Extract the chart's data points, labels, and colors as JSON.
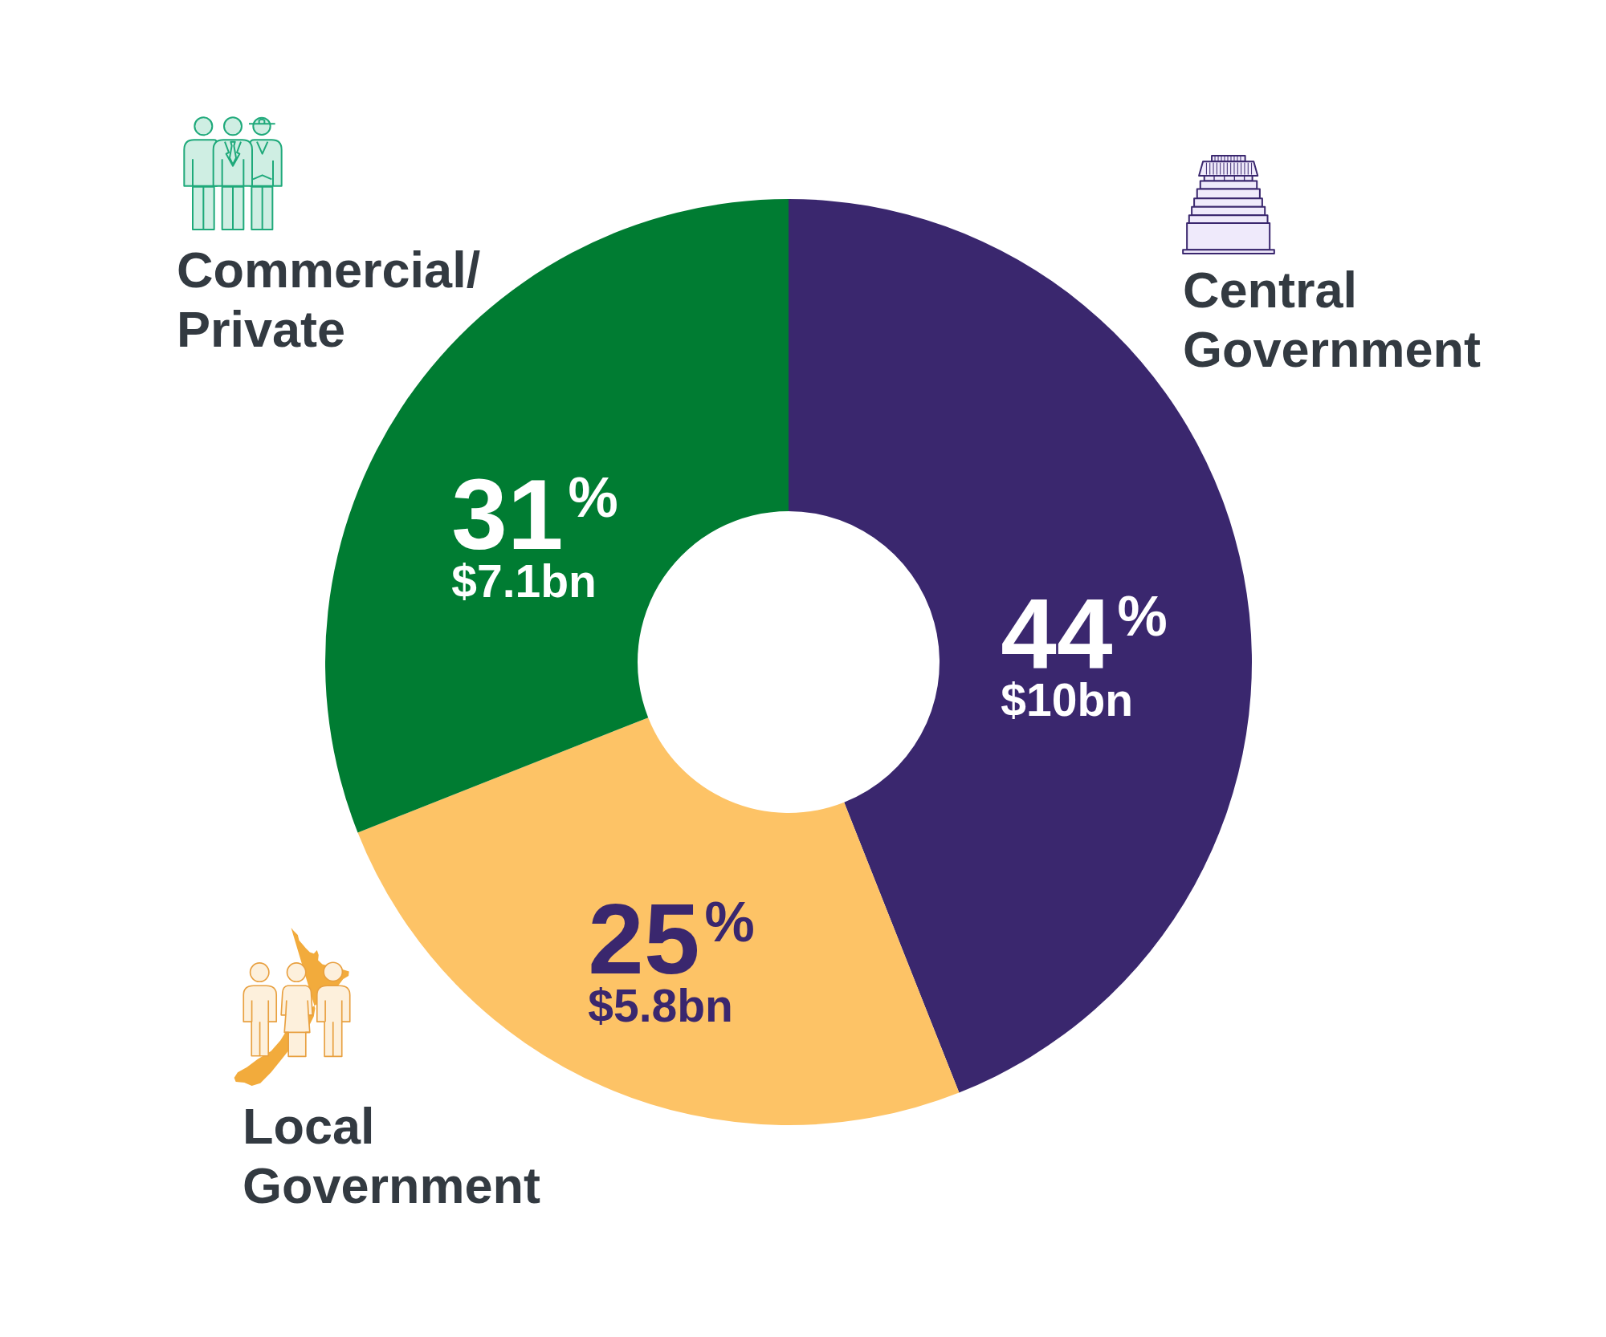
{
  "chart_data": {
    "type": "donut",
    "categories": [
      "Central Government",
      "Local Government",
      "Commercial/Private"
    ],
    "values": [
      44,
      25,
      31
    ],
    "colors": [
      "#3a276e",
      "#fdc366",
      "#007c32"
    ],
    "value_labels": [
      "44%",
      "25%",
      "31%"
    ],
    "annotations": [
      "$10bn",
      "$5.8bn",
      "$7.1bn"
    ]
  }
}
